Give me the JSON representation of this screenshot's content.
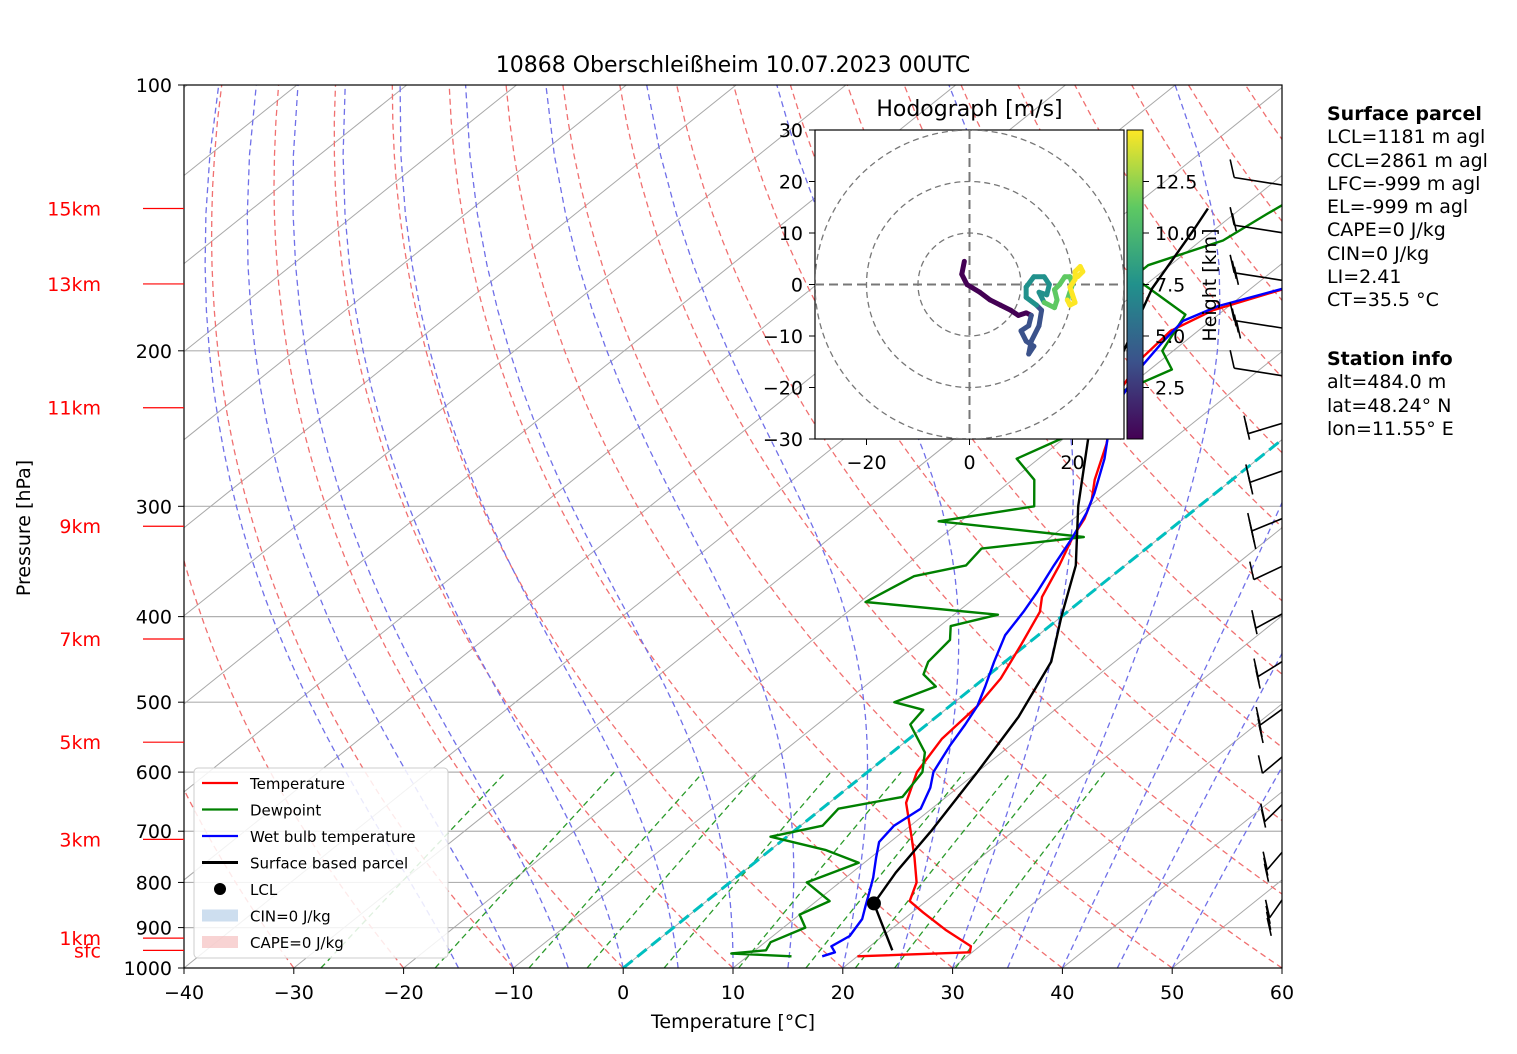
{
  "chart_data": {
    "type": "line",
    "title": "10868 Oberschleißheim 10.07.2023 00UTC",
    "xlabel": "Temperature [°C]",
    "ylabel": "Pressure [hPa]",
    "x_ticks": [
      "−40",
      "−30",
      "−20",
      "−10",
      "0",
      "10",
      "20",
      "30",
      "40",
      "50",
      "60"
    ],
    "y_ticks": [
      "100",
      "200",
      "300",
      "400",
      "500",
      "600",
      "700",
      "800",
      "900",
      "1000"
    ],
    "xlim": [
      -40,
      60
    ],
    "ylim": [
      1000,
      100
    ],
    "y_scale": "log",
    "grid": true,
    "height_labels": [
      {
        "label": "15km",
        "p": 138
      },
      {
        "label": "13km",
        "p": 168
      },
      {
        "label": "11km",
        "p": 232
      },
      {
        "label": "9km",
        "p": 316
      },
      {
        "label": "7km",
        "p": 424
      },
      {
        "label": "5km",
        "p": 555
      },
      {
        "label": "3km",
        "p": 715
      },
      {
        "label": "1km",
        "p": 925
      },
      {
        "label": "sfc",
        "p": 955
      }
    ],
    "legend_position": "lower-left",
    "legend": [
      "Temperature",
      "Dewpoint",
      "Wet bulb temperature",
      "Surface based parcel",
      "LCL",
      "CIN=0 J/kg",
      "CAPE=0 J/kg"
    ],
    "series": [
      {
        "name": "Temperature",
        "color": "#ff0000",
        "points": [
          [
            20,
            970
          ],
          [
            29.8,
            960
          ],
          [
            29.2,
            945
          ],
          [
            25,
            905
          ],
          [
            21,
            865
          ],
          [
            18.5,
            840
          ],
          [
            17,
            800
          ],
          [
            14,
            750
          ],
          [
            11,
            705
          ],
          [
            7,
            650
          ],
          [
            4.5,
            600
          ],
          [
            3,
            550
          ],
          [
            2.5,
            505
          ],
          [
            1.5,
            470
          ],
          [
            -0.5,
            430
          ],
          [
            -2.5,
            395
          ],
          [
            -4,
            380
          ],
          [
            -6,
            350
          ],
          [
            -8,
            325
          ],
          [
            -9,
            310
          ],
          [
            -10.5,
            295
          ],
          [
            -12.5,
            280
          ],
          [
            -15.5,
            255
          ],
          [
            -18.5,
            235
          ],
          [
            -20.5,
            220
          ],
          [
            -22,
            205
          ],
          [
            -22.5,
            190
          ],
          [
            -21,
            180
          ],
          [
            -16,
            168
          ],
          [
            -12,
            160
          ],
          [
            -8,
            152
          ],
          [
            -4,
            140
          ],
          [
            -1,
            132
          ],
          [
            2,
            125
          ],
          [
            5,
            120
          ],
          [
            4.5,
            115
          ]
        ]
      },
      {
        "name": "Dewpoint",
        "color": "#008000",
        "points": [
          [
            14,
            970
          ],
          [
            8.2,
            963
          ],
          [
            11,
            955
          ],
          [
            10.5,
            935
          ],
          [
            12,
            900
          ],
          [
            10,
            870
          ],
          [
            11.2,
            840
          ],
          [
            7,
            800
          ],
          [
            9.5,
            760
          ],
          [
            5,
            735
          ],
          [
            -1.5,
            710
          ],
          [
            2,
            690
          ],
          [
            1.5,
            660
          ],
          [
            6,
            640
          ],
          [
            5,
            600
          ],
          [
            3,
            570
          ],
          [
            -1.5,
            530
          ],
          [
            -2,
            510
          ],
          [
            -5.5,
            500
          ],
          [
            -3.5,
            480
          ],
          [
            -6,
            465
          ],
          [
            -7,
            450
          ],
          [
            -7.5,
            425
          ],
          [
            -9,
            410
          ],
          [
            -6,
            398
          ],
          [
            -19.5,
            385
          ],
          [
            -18,
            360
          ],
          [
            -14.5,
            350
          ],
          [
            -15,
            335
          ],
          [
            -7,
            325
          ],
          [
            -22,
            312
          ],
          [
            -15,
            300
          ],
          [
            -18,
            280
          ],
          [
            -22,
            265
          ],
          [
            -20,
            250
          ],
          [
            -22.5,
            235
          ],
          [
            -20,
            222
          ],
          [
            -18,
            210
          ],
          [
            -21,
            200
          ],
          [
            -23,
            182
          ],
          [
            -32,
            165
          ],
          [
            -32,
            160
          ],
          [
            -28,
            150
          ],
          [
            -27,
            140
          ],
          [
            -25.5,
            128
          ],
          [
            -25,
            123
          ]
        ]
      },
      {
        "name": "Wet bulb temperature",
        "color": "#0000ff",
        "points": [
          [
            16.8,
            970
          ],
          [
            17.5,
            960
          ],
          [
            16.5,
            945
          ],
          [
            17,
            920
          ],
          [
            16.2,
            880
          ],
          [
            15,
            850
          ],
          [
            14.2,
            830
          ],
          [
            12.5,
            790
          ],
          [
            10.5,
            750
          ],
          [
            9,
            720
          ],
          [
            8.5,
            690
          ],
          [
            9,
            660
          ],
          [
            7.5,
            625
          ],
          [
            6,
            600
          ],
          [
            4.5,
            560
          ],
          [
            3.5,
            530
          ],
          [
            2.5,
            505
          ],
          [
            1,
            480
          ],
          [
            -1,
            450
          ],
          [
            -3,
            420
          ],
          [
            -4,
            395
          ],
          [
            -5,
            375
          ],
          [
            -6.5,
            350
          ],
          [
            -8,
            325
          ],
          [
            -9.5,
            305
          ],
          [
            -11,
            290
          ],
          [
            -14,
            265
          ],
          [
            -17,
            245
          ],
          [
            -19.5,
            225
          ],
          [
            -21,
            210
          ],
          [
            -22,
            195
          ],
          [
            -22.5,
            185
          ],
          [
            -21,
            178
          ],
          [
            -16,
            168
          ],
          [
            -12,
            160
          ],
          [
            -8,
            152
          ],
          [
            -4,
            140
          ],
          [
            -1,
            132
          ],
          [
            2,
            125
          ],
          [
            4.5,
            120
          ],
          [
            4,
            115
          ]
        ]
      },
      {
        "name": "Surface based parcel",
        "color": "#000000",
        "points": [
          [
            22.5,
            955
          ],
          [
            15.5,
            845
          ],
          [
            14,
            780
          ],
          [
            12.5,
            700
          ],
          [
            10,
            600
          ],
          [
            7.5,
            520
          ],
          [
            4.2,
            450
          ],
          [
            0,
            400
          ],
          [
            -4.5,
            350
          ],
          [
            -11,
            300
          ],
          [
            -18,
            250
          ],
          [
            -24.5,
            200
          ],
          [
            -29,
            170
          ],
          [
            -32,
            145
          ],
          [
            -33,
            138
          ]
        ]
      }
    ],
    "lcl": {
      "label": "LCL",
      "t": 15.5,
      "p": 845
    },
    "dry_adiabat_theta_c": [
      -40,
      -30,
      -20,
      -10,
      0,
      10,
      20,
      30,
      40,
      50,
      60,
      70,
      80,
      90,
      100,
      110,
      120,
      130,
      140,
      150,
      160,
      170,
      180,
      190,
      200
    ],
    "moist_adiabat_start_c": [
      -15,
      -10,
      -5,
      0,
      5,
      10,
      15,
      20,
      25,
      30,
      35,
      40,
      45,
      50
    ],
    "mixing_ratio_lines": [
      0.4,
      1,
      2,
      3,
      5,
      8,
      12,
      16,
      20,
      28
    ],
    "hodograph": {
      "title": "Hodograph [m/s]",
      "x_ticks": [
        "−20",
        "0",
        "20"
      ],
      "y_ticks": [
        "30",
        "20",
        "10",
        "0",
        "−10",
        "−20",
        "−30"
      ],
      "colorbar_label": "Height [km]",
      "colorbar_ticks": [
        "12.5",
        "10.0",
        "7.5",
        "5.0",
        "2.5"
      ],
      "colorbar_max": 15,
      "colormap": [
        "#440154",
        "#3b528b",
        "#21918c",
        "#5ec962",
        "#fde725"
      ],
      "points": [
        [
          -1,
          4.5
        ],
        [
          -1.5,
          2
        ],
        [
          -0.5,
          0
        ],
        [
          2,
          -1.5
        ],
        [
          4,
          -3
        ],
        [
          6,
          -4
        ],
        [
          8,
          -5
        ],
        [
          9.5,
          -6
        ],
        [
          11,
          -5.5
        ],
        [
          12,
          -6
        ],
        [
          11.5,
          -8
        ],
        [
          10,
          -9
        ],
        [
          11,
          -11
        ],
        [
          12.5,
          -12
        ],
        [
          11.5,
          -13.5
        ],
        [
          12,
          -11
        ],
        [
          13.5,
          -8
        ],
        [
          14,
          -5
        ],
        [
          13,
          -4
        ],
        [
          11,
          -2.5
        ],
        [
          11,
          -0.5
        ],
        [
          12.5,
          1.5
        ],
        [
          14.5,
          1.5
        ],
        [
          15.5,
          0
        ],
        [
          15,
          -2
        ],
        [
          13.5,
          -1.5
        ],
        [
          14.5,
          -3.5
        ],
        [
          16.5,
          -4.5
        ],
        [
          17,
          -3
        ],
        [
          16.5,
          -1
        ],
        [
          17.5,
          0
        ],
        [
          18.5,
          1.5
        ],
        [
          19.5,
          1.5
        ],
        [
          20,
          0
        ],
        [
          19.5,
          -1.5
        ],
        [
          19,
          -3
        ],
        [
          19.5,
          -4
        ],
        [
          20.5,
          -3.5
        ],
        [
          20,
          -2
        ],
        [
          19.5,
          -0.5
        ],
        [
          20.5,
          1
        ],
        [
          20.5,
          2.5
        ],
        [
          21.5,
          3.5
        ],
        [
          22,
          2.5
        ],
        [
          21,
          1.5
        ]
      ]
    },
    "wind_barbs_count": 16
  },
  "info": {
    "parcel_header": "Surface parcel",
    "parcel_lines": [
      "LCL=1181 m agl",
      "CCL=2861 m agl",
      "LFC=-999 m agl",
      "EL=-999 m agl",
      "CAPE=0 J/kg",
      "CIN=0 J/kg",
      "LI=2.41",
      "CT=35.5 °C"
    ],
    "station_header": "Station info",
    "station_lines": [
      "alt=484.0 m",
      "lat=48.24° N",
      "lon=11.55° E"
    ]
  },
  "colors": {
    "temperature": "#ff0000",
    "dewpoint": "#008000",
    "wetbulb": "#0000ff",
    "parcel": "#000000",
    "zero_isotherm": "#00bfbf",
    "height_labels": "#ff0000"
  }
}
